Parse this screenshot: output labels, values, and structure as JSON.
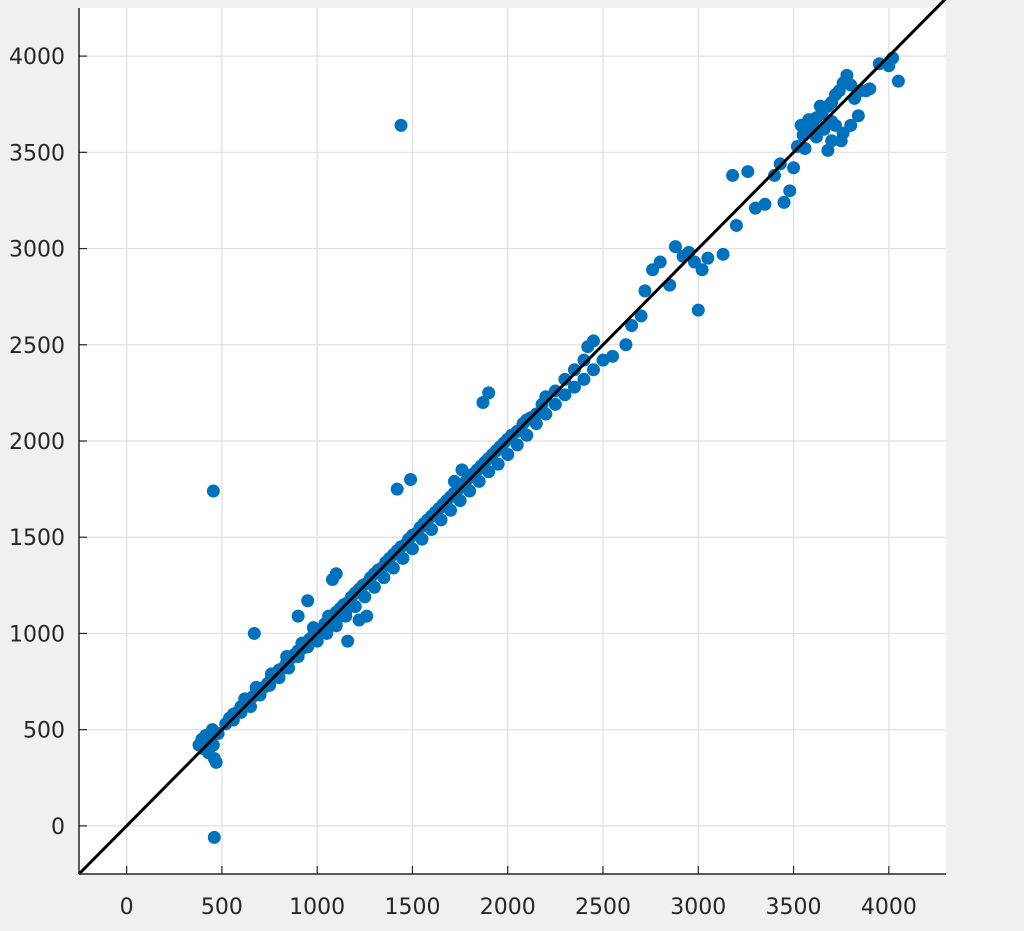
{
  "chart_data": {
    "type": "scatter",
    "title": "",
    "xlabel": "",
    "ylabel": "",
    "xlim": [
      -250,
      4300
    ],
    "ylim": [
      -250,
      4250
    ],
    "grid": true,
    "x_ticks": [
      0,
      500,
      1000,
      1500,
      2000,
      2500,
      3000,
      3500,
      4000
    ],
    "y_ticks": [
      0,
      500,
      1000,
      1500,
      2000,
      2500,
      3000,
      3500,
      4000
    ],
    "x_tick_labels": [
      "0",
      "500",
      "1000",
      "1500",
      "2000",
      "2500",
      "3000",
      "3500",
      "4000"
    ],
    "y_tick_labels": [
      "0",
      "500",
      "1000",
      "1500",
      "2000",
      "2500",
      "3000",
      "3500",
      "4000"
    ],
    "colors": {
      "points": "#0072bd",
      "reference_line": "#000000",
      "grid": "#dfdfdf",
      "axes": "#262626",
      "background": "#ffffff"
    },
    "reference_line": {
      "x": [
        -250,
        4300
      ],
      "y": [
        -250,
        4300
      ]
    },
    "series": [
      {
        "points": [
          [
            380,
            420
          ],
          [
            395,
            450
          ],
          [
            405,
            400
          ],
          [
            415,
            470
          ],
          [
            425,
            440
          ],
          [
            430,
            380
          ],
          [
            440,
            460
          ],
          [
            450,
            500
          ],
          [
            455,
            420
          ],
          [
            460,
            350
          ],
          [
            470,
            330
          ],
          [
            480,
            480
          ],
          [
            460,
            -60
          ],
          [
            455,
            1740
          ],
          [
            1440,
            3640
          ],
          [
            670,
            1000
          ],
          [
            520,
            530
          ],
          [
            540,
            560
          ],
          [
            560,
            580
          ],
          [
            580,
            590
          ],
          [
            600,
            620
          ],
          [
            620,
            640
          ],
          [
            640,
            650
          ],
          [
            660,
            670
          ],
          [
            680,
            690
          ],
          [
            700,
            710
          ],
          [
            720,
            720
          ],
          [
            740,
            740
          ],
          [
            760,
            770
          ],
          [
            780,
            790
          ],
          [
            800,
            810
          ],
          [
            820,
            820
          ],
          [
            840,
            850
          ],
          [
            860,
            870
          ],
          [
            880,
            890
          ],
          [
            900,
            910
          ],
          [
            920,
            920
          ],
          [
            940,
            950
          ],
          [
            960,
            970
          ],
          [
            980,
            990
          ],
          [
            1000,
            1010
          ],
          [
            560,
            550
          ],
          [
            600,
            590
          ],
          [
            650,
            620
          ],
          [
            700,
            680
          ],
          [
            750,
            730
          ],
          [
            800,
            770
          ],
          [
            850,
            820
          ],
          [
            900,
            880
          ],
          [
            950,
            930
          ],
          [
            1000,
            960
          ],
          [
            1050,
            1010
          ],
          [
            1100,
            1060
          ],
          [
            1150,
            1110
          ],
          [
            620,
            660
          ],
          [
            680,
            720
          ],
          [
            760,
            790
          ],
          [
            840,
            880
          ],
          [
            920,
            950
          ],
          [
            980,
            1030
          ],
          [
            1060,
            1090
          ],
          [
            1020,
            1020
          ],
          [
            1040,
            1050
          ],
          [
            1060,
            1070
          ],
          [
            1080,
            1080
          ],
          [
            1100,
            1110
          ],
          [
            1120,
            1130
          ],
          [
            1140,
            1150
          ],
          [
            1160,
            1160
          ],
          [
            1180,
            1190
          ],
          [
            1200,
            1210
          ],
          [
            1220,
            1230
          ],
          [
            1240,
            1250
          ],
          [
            1260,
            1260
          ],
          [
            1280,
            1290
          ],
          [
            1300,
            1310
          ],
          [
            1320,
            1330
          ],
          [
            1340,
            1340
          ],
          [
            1360,
            1370
          ],
          [
            1380,
            1390
          ],
          [
            1400,
            1410
          ],
          [
            1420,
            1430
          ],
          [
            1440,
            1450
          ],
          [
            1460,
            1460
          ],
          [
            1480,
            1490
          ],
          [
            1500,
            1510
          ],
          [
            1050,
            1000
          ],
          [
            1100,
            1040
          ],
          [
            1150,
            1090
          ],
          [
            1200,
            1140
          ],
          [
            1250,
            1190
          ],
          [
            1300,
            1240
          ],
          [
            1350,
            1290
          ],
          [
            1400,
            1340
          ],
          [
            1450,
            1390
          ],
          [
            1500,
            1440
          ],
          [
            1550,
            1490
          ],
          [
            1600,
            1540
          ],
          [
            900,
            1090
          ],
          [
            950,
            1170
          ],
          [
            1080,
            1280
          ],
          [
            1100,
            1310
          ],
          [
            1160,
            960
          ],
          [
            1220,
            1070
          ],
          [
            1260,
            1090
          ],
          [
            1520,
            1520
          ],
          [
            1540,
            1550
          ],
          [
            1560,
            1570
          ],
          [
            1580,
            1590
          ],
          [
            1600,
            1610
          ],
          [
            1620,
            1630
          ],
          [
            1640,
            1650
          ],
          [
            1660,
            1670
          ],
          [
            1680,
            1690
          ],
          [
            1700,
            1710
          ],
          [
            1720,
            1730
          ],
          [
            1740,
            1750
          ],
          [
            1760,
            1770
          ],
          [
            1780,
            1790
          ],
          [
            1800,
            1810
          ],
          [
            1820,
            1830
          ],
          [
            1840,
            1850
          ],
          [
            1860,
            1870
          ],
          [
            1880,
            1890
          ],
          [
            1900,
            1910
          ],
          [
            1920,
            1930
          ],
          [
            1940,
            1950
          ],
          [
            1960,
            1970
          ],
          [
            1980,
            1990
          ],
          [
            2000,
            2010
          ],
          [
            1650,
            1590
          ],
          [
            1700,
            1640
          ],
          [
            1750,
            1690
          ],
          [
            1800,
            1740
          ],
          [
            1850,
            1790
          ],
          [
            1900,
            1840
          ],
          [
            1950,
            1880
          ],
          [
            2000,
            1930
          ],
          [
            2050,
            1980
          ],
          [
            2100,
            2030
          ],
          [
            1490,
            1800
          ],
          [
            1420,
            1750
          ],
          [
            1870,
            2200
          ],
          [
            1900,
            2250
          ],
          [
            1720,
            1790
          ],
          [
            1760,
            1850
          ],
          [
            2020,
            2030
          ],
          [
            2050,
            2050
          ],
          [
            2080,
            2090
          ],
          [
            2100,
            2110
          ],
          [
            2120,
            2120
          ],
          [
            2150,
            2140
          ],
          [
            2180,
            2190
          ],
          [
            2200,
            2230
          ],
          [
            2250,
            2260
          ],
          [
            2300,
            2320
          ],
          [
            2350,
            2370
          ],
          [
            2400,
            2420
          ],
          [
            2450,
            2520
          ],
          [
            2420,
            2490
          ],
          [
            2150,
            2090
          ],
          [
            2200,
            2140
          ],
          [
            2250,
            2190
          ],
          [
            2300,
            2240
          ],
          [
            2350,
            2280
          ],
          [
            2400,
            2320
          ],
          [
            2450,
            2370
          ],
          [
            2500,
            2420
          ],
          [
            2550,
            2440
          ],
          [
            2620,
            2500
          ],
          [
            2650,
            2600
          ],
          [
            2700,
            2650
          ],
          [
            2720,
            2780
          ],
          [
            2760,
            2890
          ],
          [
            2800,
            2930
          ],
          [
            2850,
            2810
          ],
          [
            2880,
            3010
          ],
          [
            2920,
            2960
          ],
          [
            2950,
            2980
          ],
          [
            2980,
            2930
          ],
          [
            3020,
            2890
          ],
          [
            3050,
            2950
          ],
          [
            3130,
            2970
          ],
          [
            3000,
            2680
          ],
          [
            3180,
            3380
          ],
          [
            3200,
            3120
          ],
          [
            3260,
            3400
          ],
          [
            3300,
            3210
          ],
          [
            3350,
            3230
          ],
          [
            3400,
            3380
          ],
          [
            3430,
            3440
          ],
          [
            3450,
            3240
          ],
          [
            3480,
            3300
          ],
          [
            3500,
            3420
          ],
          [
            3520,
            3530
          ],
          [
            3550,
            3590
          ],
          [
            3580,
            3620
          ],
          [
            3600,
            3650
          ],
          [
            3620,
            3680
          ],
          [
            3650,
            3700
          ],
          [
            3680,
            3740
          ],
          [
            3700,
            3760
          ],
          [
            3720,
            3800
          ],
          [
            3740,
            3820
          ],
          [
            3760,
            3860
          ],
          [
            3780,
            3900
          ],
          [
            3800,
            3850
          ],
          [
            3820,
            3780
          ],
          [
            3840,
            3690
          ],
          [
            3700,
            3560
          ],
          [
            3680,
            3510
          ],
          [
            3750,
            3560
          ],
          [
            3620,
            3580
          ],
          [
            3560,
            3520
          ],
          [
            3540,
            3640
          ],
          [
            3600,
            3600
          ],
          [
            3660,
            3620
          ],
          [
            3720,
            3640
          ],
          [
            3760,
            3600
          ],
          [
            3800,
            3640
          ],
          [
            3850,
            3820
          ],
          [
            3900,
            3830
          ],
          [
            3950,
            3960
          ],
          [
            4000,
            3950
          ],
          [
            4050,
            3870
          ],
          [
            4020,
            3990
          ],
          [
            3880,
            3820
          ],
          [
            3640,
            3740
          ],
          [
            3580,
            3670
          ],
          [
            3700,
            3660
          ]
        ]
      }
    ]
  }
}
